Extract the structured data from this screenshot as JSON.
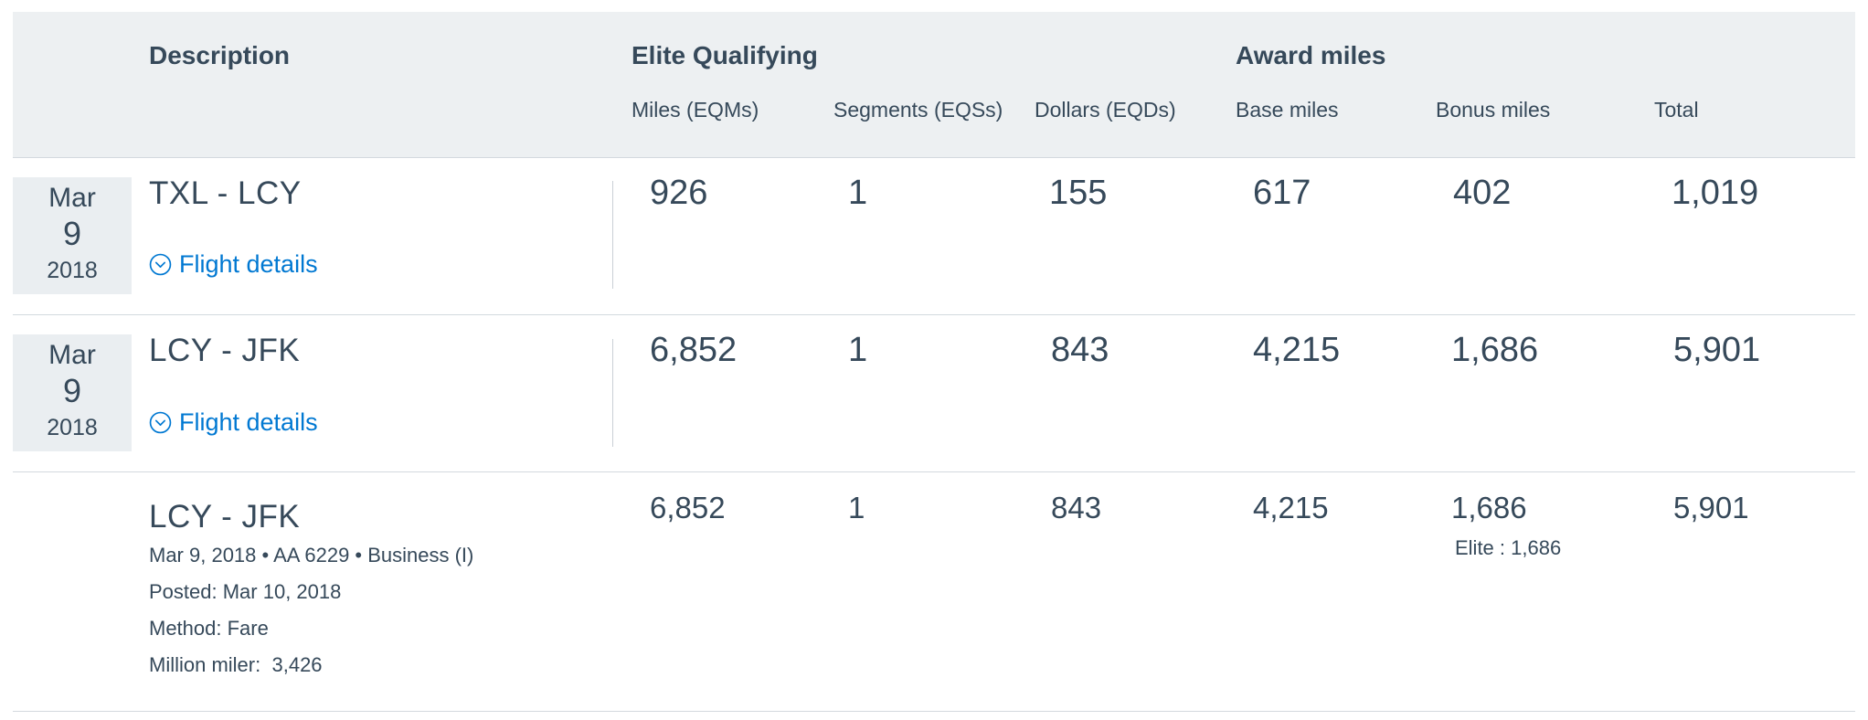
{
  "header": {
    "description": "Description",
    "elite_qualifying": "Elite Qualifying",
    "award_miles": "Award miles",
    "columns": {
      "eqm": "Miles (EQMs)",
      "eqs": "Segments (EQSs)",
      "eqd": "Dollars (EQDs)",
      "base": "Base miles",
      "bonus": "Bonus miles",
      "total": "Total"
    }
  },
  "rows": [
    {
      "date": {
        "month": "Mar",
        "day": "9",
        "year": "2018"
      },
      "route": "TXL - LCY",
      "details_label": "Flight details",
      "eqm": "926",
      "eqs": "1",
      "eqd": "155",
      "base": "617",
      "bonus": "402",
      "total": "1,019"
    },
    {
      "date": {
        "month": "Mar",
        "day": "9",
        "year": "2018"
      },
      "route": "LCY - JFK",
      "details_label": "Flight details",
      "eqm": "6,852",
      "eqs": "1",
      "eqd": "843",
      "base": "4,215",
      "bonus": "1,686",
      "total": "5,901"
    }
  ],
  "detail": {
    "route": "LCY - JFK",
    "flight_info": "Mar 9, 2018 • AA 6229 • Business (I)",
    "posted": "Posted: Mar 10, 2018",
    "method": "Method: Fare",
    "million_miler_label": "Million miler:",
    "million_miler_value": "3,426",
    "eqm": "6,852",
    "eqs": "1",
    "eqd": "843",
    "base": "4,215",
    "bonus": "1,686",
    "elite_bonus": "Elite : 1,686",
    "total": "5,901"
  },
  "icons": {
    "details": "chevron-circle-down-icon"
  },
  "colors": {
    "header_bg": "#edf0f2",
    "date_bg": "#eaeef1",
    "text": "#36495a",
    "link": "#0078d2",
    "divider": "#d3d9de"
  }
}
